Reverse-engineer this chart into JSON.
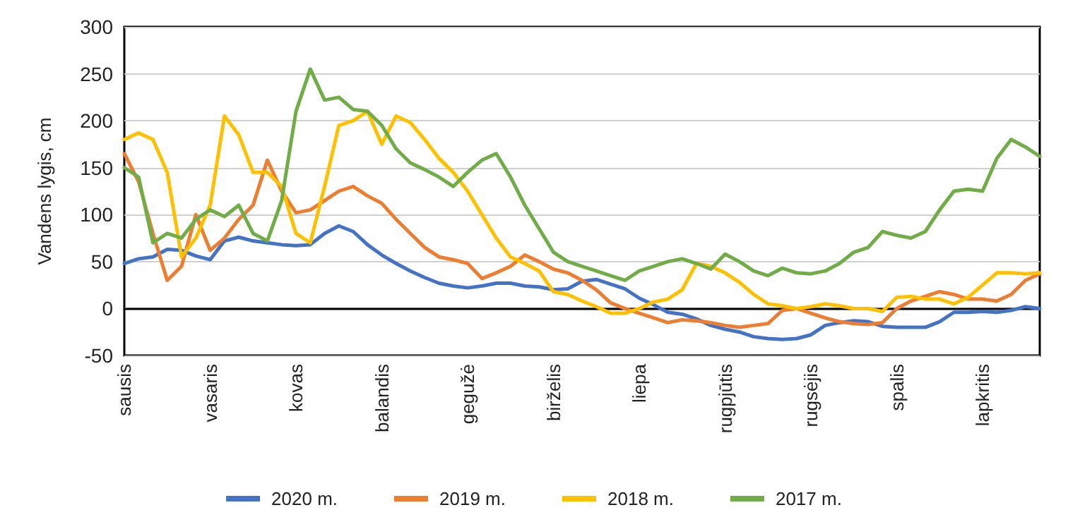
{
  "chart_data": {
    "type": "line",
    "ylabel": "Vandens lygis, cm",
    "categories": [
      "sausis",
      null,
      null,
      null,
      null,
      null,
      "vasaris",
      null,
      null,
      null,
      null,
      null,
      "kovas",
      null,
      null,
      null,
      null,
      null,
      "balandis",
      null,
      null,
      null,
      null,
      null,
      "gegužė",
      null,
      null,
      null,
      null,
      null,
      "birželis",
      null,
      null,
      null,
      null,
      null,
      "liepa",
      null,
      null,
      null,
      null,
      null,
      "rugpjūtis",
      null,
      null,
      null,
      null,
      null,
      "rugsėjis",
      null,
      null,
      null,
      null,
      null,
      "spalis",
      null,
      null,
      null,
      null,
      null,
      "lapkritis",
      null,
      null,
      null,
      null
    ],
    "ylim": [
      -50,
      300
    ],
    "yticks": [
      -50,
      0,
      50,
      100,
      150,
      200,
      250,
      300
    ],
    "grid": "y",
    "legend": "bottom",
    "marker": "none",
    "line_style": "solid",
    "series": [
      {
        "name": "2020 m.",
        "color": "#4472c4",
        "values": [
          48,
          53,
          55,
          63,
          62,
          56,
          52,
          72,
          76,
          72,
          70,
          68,
          67,
          68,
          80,
          88,
          82,
          68,
          57,
          48,
          40,
          33,
          27,
          24,
          22,
          24,
          27,
          27,
          24,
          23,
          20,
          21,
          29,
          31,
          26,
          21,
          11,
          4,
          -4,
          -6,
          -11,
          -18,
          -22,
          -25,
          -30,
          -32,
          -33,
          -32,
          -28,
          -18,
          -15,
          -13,
          -14,
          -19,
          -20,
          -20,
          -20,
          -14,
          -4,
          -4,
          -3,
          -4,
          -2,
          2,
          0
        ]
      },
      {
        "name": "2019 m.",
        "color": "#ed7d31",
        "values": [
          165,
          135,
          80,
          30,
          45,
          100,
          62,
          75,
          95,
          110,
          158,
          125,
          102,
          105,
          115,
          125,
          130,
          120,
          112,
          95,
          80,
          65,
          55,
          52,
          48,
          32,
          38,
          45,
          57,
          50,
          42,
          38,
          30,
          20,
          6,
          0,
          -5,
          -10,
          -15,
          -12,
          -13,
          -15,
          -18,
          -20,
          -18,
          -16,
          -2,
          0,
          -5,
          -10,
          -14,
          -16,
          -17,
          -15,
          0,
          8,
          13,
          18,
          15,
          10,
          10,
          8,
          15,
          30,
          37
        ]
      },
      {
        "name": "2018 m.",
        "color": "#ffc000",
        "values": [
          180,
          187,
          180,
          145,
          55,
          75,
          110,
          205,
          185,
          145,
          145,
          130,
          80,
          70,
          130,
          195,
          200,
          210,
          175,
          205,
          198,
          180,
          160,
          145,
          125,
          100,
          75,
          55,
          48,
          40,
          18,
          15,
          8,
          2,
          -5,
          -5,
          0,
          7,
          10,
          20,
          48,
          45,
          38,
          28,
          15,
          5,
          3,
          0,
          2,
          5,
          3,
          0,
          0,
          -3,
          12,
          13,
          10,
          10,
          5,
          12,
          25,
          38,
          38,
          37,
          38
        ]
      },
      {
        "name": "2017 m.",
        "color": "#70ad47",
        "values": [
          150,
          140,
          70,
          80,
          75,
          95,
          105,
          98,
          110,
          80,
          72,
          115,
          210,
          255,
          222,
          225,
          212,
          210,
          195,
          170,
          155,
          148,
          140,
          130,
          145,
          158,
          165,
          140,
          110,
          85,
          60,
          50,
          45,
          40,
          35,
          30,
          40,
          45,
          50,
          53,
          48,
          42,
          58,
          50,
          40,
          35,
          43,
          38,
          37,
          40,
          48,
          60,
          65,
          82,
          78,
          75,
          82,
          105,
          125,
          127,
          125,
          160,
          180,
          172,
          162
        ]
      }
    ]
  }
}
